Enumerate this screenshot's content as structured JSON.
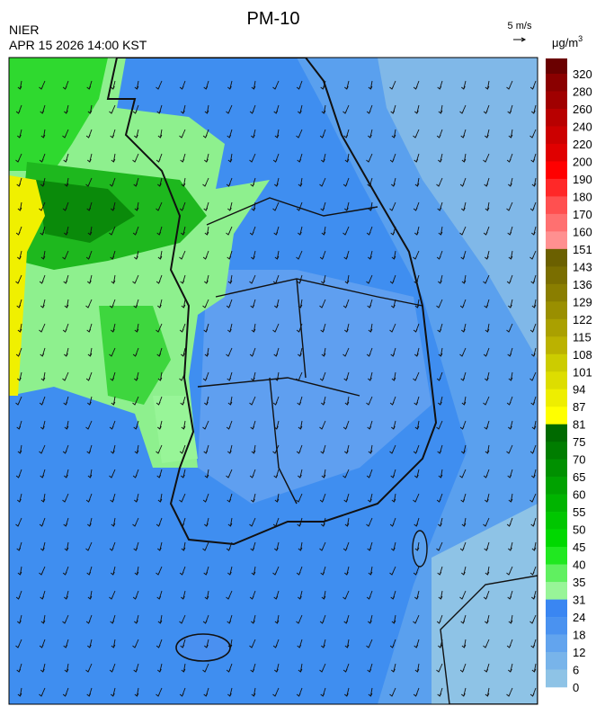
{
  "header": {
    "title": "PM-10",
    "agency": "NIER",
    "timestamp": "APR 15 2026 14:00 KST"
  },
  "wind_scale": {
    "label": "5 m/s"
  },
  "legend": {
    "unit": "μg/m",
    "unit_sup": "3",
    "labels": [
      320,
      280,
      260,
      240,
      220,
      200,
      190,
      180,
      170,
      160,
      151,
      143,
      136,
      129,
      122,
      115,
      108,
      101,
      94,
      87,
      81,
      75,
      70,
      65,
      60,
      55,
      50,
      45,
      40,
      35,
      31,
      24,
      18,
      12,
      6,
      0
    ]
  }
}
